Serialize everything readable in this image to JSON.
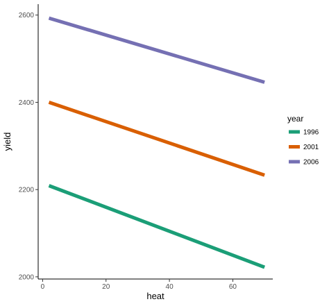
{
  "chart_data": {
    "type": "line",
    "xlabel": "heat",
    "ylabel": "yield",
    "xlim": [
      -1.4,
      72.6
    ],
    "ylim": [
      1995,
      2625
    ],
    "x_ticks": [
      0,
      20,
      40,
      60
    ],
    "y_ticks": [
      2000,
      2200,
      2400,
      2600
    ],
    "grid": false,
    "legend": {
      "title": "year",
      "position": "right"
    },
    "series": [
      {
        "name": "1996",
        "color": "#1b9e77",
        "x": [
          2,
          70
        ],
        "y": [
          2209,
          2022
        ]
      },
      {
        "name": "2001",
        "color": "#d95f02",
        "x": [
          2,
          70
        ],
        "y": [
          2400,
          2233
        ]
      },
      {
        "name": "2006",
        "color": "#7570b3",
        "x": [
          2,
          70
        ],
        "y": [
          2593,
          2446
        ]
      }
    ]
  }
}
